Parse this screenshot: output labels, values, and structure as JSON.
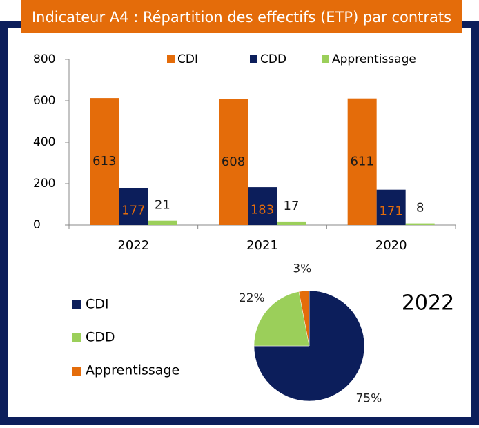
{
  "title": "Indicateur A4 : Répartition des effectifs (ETP) par contrats",
  "chart_data": [
    {
      "type": "bar",
      "categories": [
        "2022",
        "2021",
        "2020"
      ],
      "series": [
        {
          "name": "CDI",
          "color": "#e46c0a",
          "values": [
            613,
            608,
            611
          ]
        },
        {
          "name": "CDD",
          "color": "#0c1e5b",
          "values": [
            177,
            183,
            171
          ]
        },
        {
          "name": "Apprentissage",
          "color": "#9bcf5a",
          "values": [
            21,
            17,
            8
          ]
        }
      ],
      "ylim": [
        0,
        800
      ],
      "yticks": [
        0,
        200,
        400,
        600,
        800
      ],
      "legend": "top"
    },
    {
      "type": "pie",
      "title": "2022",
      "categories": [
        "CDI",
        "CDD",
        "Apprentissage"
      ],
      "values": [
        75,
        22,
        3
      ],
      "value_labels": [
        "75%",
        "22%",
        "3%"
      ],
      "colors": [
        "#0c1e5b",
        "#9bcf5a",
        "#e46c0a"
      ],
      "legend": "left"
    }
  ]
}
